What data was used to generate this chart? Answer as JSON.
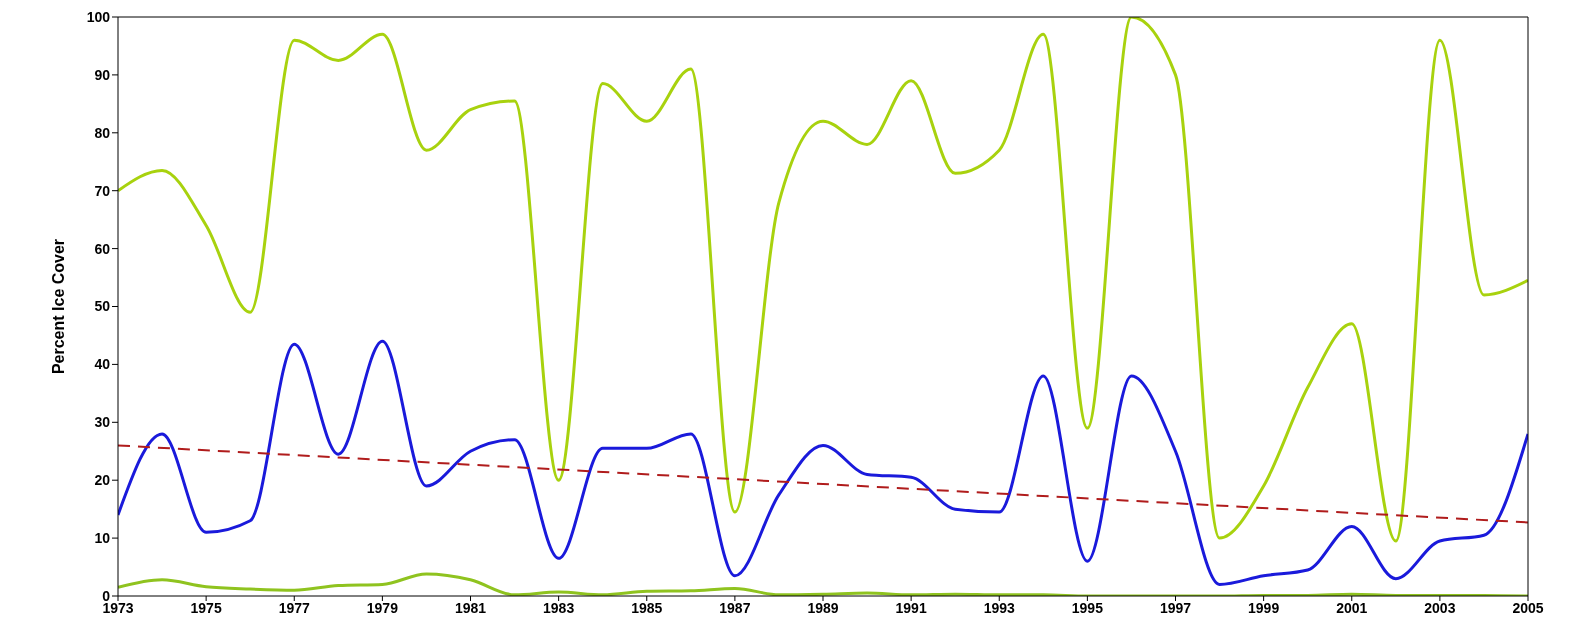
{
  "chart_data": {
    "type": "line",
    "ylabel": "Percent Ice Cover",
    "x": [
      1973,
      1974,
      1975,
      1976,
      1977,
      1978,
      1979,
      1980,
      1981,
      1982,
      1983,
      1984,
      1985,
      1986,
      1987,
      1988,
      1989,
      1990,
      1991,
      1992,
      1993,
      1994,
      1995,
      1996,
      1997,
      1998,
      1999,
      2000,
      2001,
      2002,
      2003,
      2004,
      2005
    ],
    "series": [
      {
        "color": "#a8d20e",
        "values": [
          70,
          73.5,
          64,
          49,
          96,
          92.5,
          97,
          77,
          84,
          85.5,
          20,
          88.5,
          82,
          91,
          14.5,
          68,
          82,
          78,
          89,
          73,
          77,
          97,
          29,
          100,
          90,
          10,
          19,
          36,
          47,
          9.5,
          96,
          52,
          54.5
        ]
      },
      {
        "color": "#1a1adb",
        "values": [
          14,
          28,
          11,
          13,
          43.5,
          24.5,
          44,
          19,
          25,
          27,
          6.5,
          25.5,
          25.5,
          28,
          3.5,
          17.5,
          26,
          21,
          20.5,
          15,
          14.5,
          38,
          6,
          38,
          25,
          2,
          3.5,
          4.5,
          12,
          3,
          9.5,
          10.5,
          28
        ]
      },
      {
        "color": "#8fc31f",
        "values": [
          1.5,
          2.8,
          1.6,
          1.2,
          1,
          1.8,
          2,
          3.8,
          2.8,
          0.2,
          0.7,
          0.2,
          0.8,
          0.9,
          1.3,
          0.2,
          0.3,
          0.5,
          0.2,
          0.3,
          0.2,
          0.2,
          0,
          0,
          0,
          0,
          0.1,
          0.1,
          0.3,
          0.1,
          0.1,
          0.1,
          0
        ]
      },
      {
        "type": "line",
        "color": "#b01c1c",
        "line_style": "dashed",
        "x": [
          1973,
          2005
        ],
        "values": [
          26,
          12.7
        ]
      }
    ],
    "xlim": [
      1973,
      2005
    ],
    "xticks": [
      1973,
      1975,
      1977,
      1979,
      1981,
      1983,
      1985,
      1987,
      1989,
      1991,
      1993,
      1995,
      1997,
      1999,
      2001,
      2003,
      2005
    ],
    "ylim": [
      0,
      100
    ],
    "yticks": [
      0,
      10,
      20,
      30,
      40,
      50,
      60,
      70,
      80,
      90,
      100
    ],
    "marker": "none",
    "line_style": "solid"
  }
}
